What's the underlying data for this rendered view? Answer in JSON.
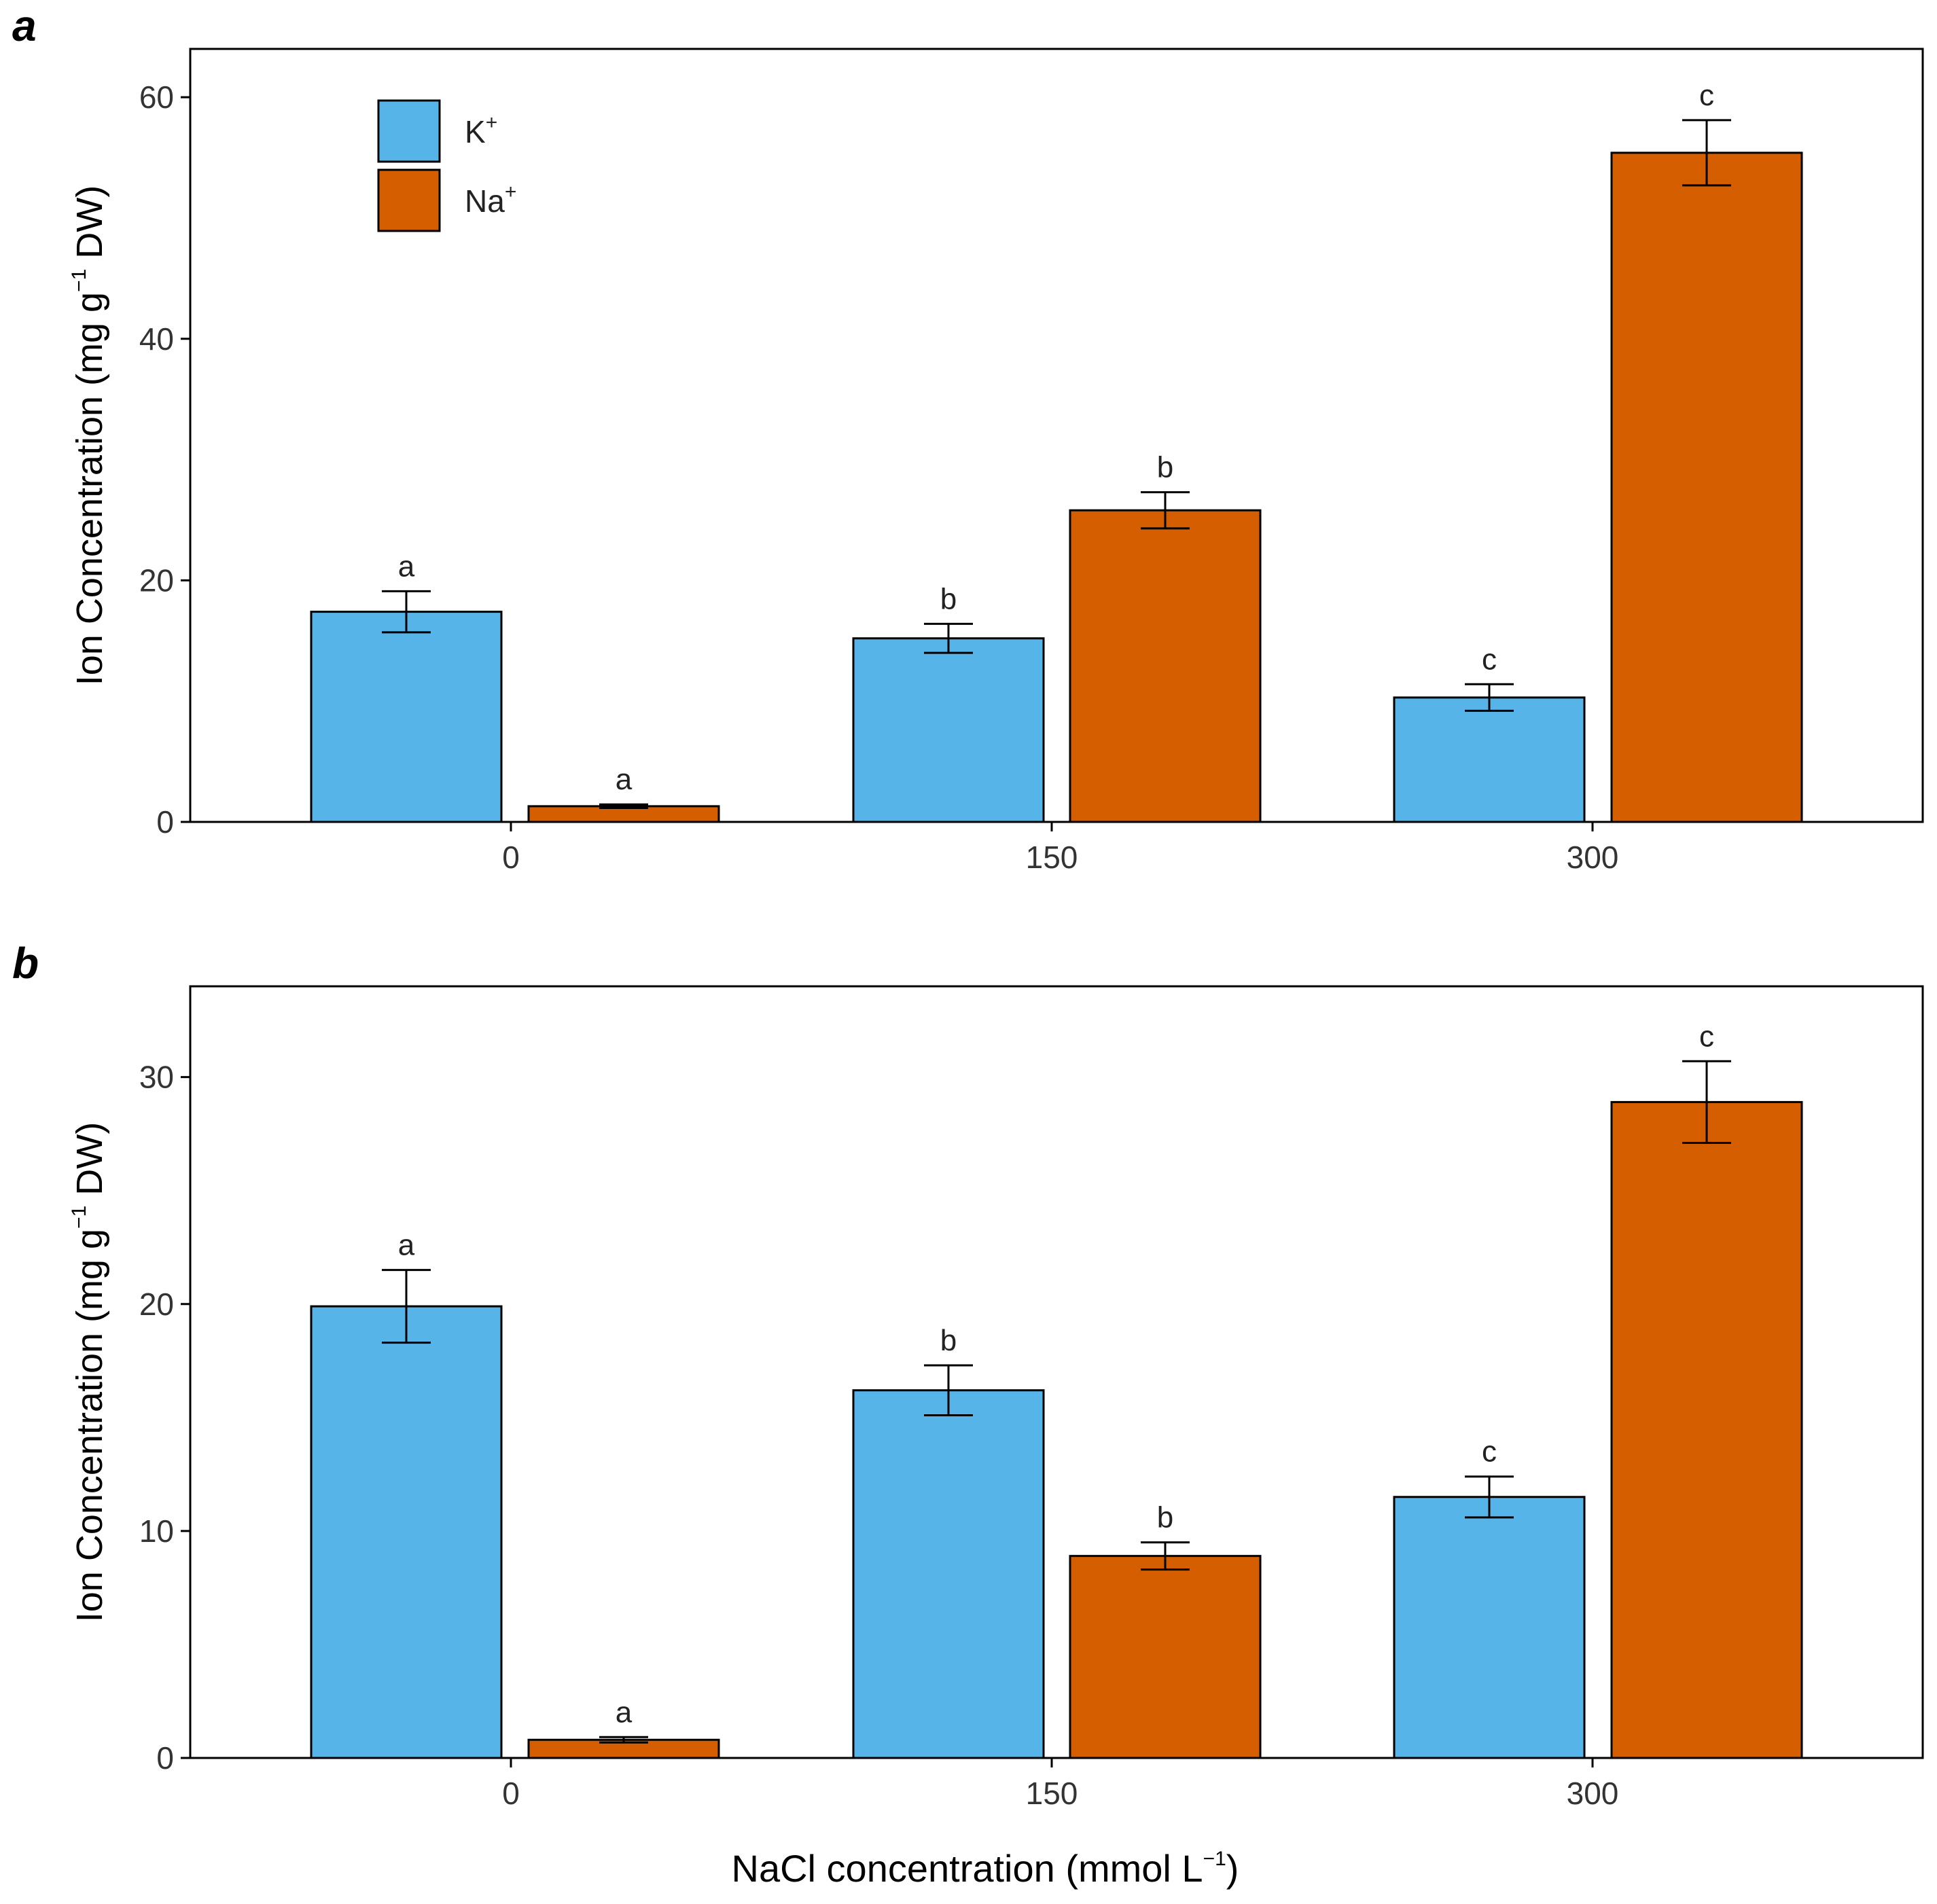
{
  "chart_data": [
    {
      "type": "bar",
      "panel_label": "a",
      "categories": [
        "0",
        "150",
        "300"
      ],
      "ylabel_main": "Ion Concentration (mg g",
      "ylabel_sup": "−1",
      "ylabel_end": " DW)",
      "ylim": [
        0,
        64
      ],
      "yticks": [
        0,
        20,
        40,
        60
      ],
      "series": [
        {
          "name": "K",
          "sup": "+",
          "color": "#56B4E9",
          "values": [
            17.4,
            15.2,
            10.3
          ],
          "errors": [
            1.7,
            1.2,
            1.1
          ],
          "letters": [
            "a",
            "b",
            "c"
          ]
        },
        {
          "name": "Na",
          "sup": "+",
          "color": "#D55E00",
          "values": [
            1.3,
            25.8,
            55.4
          ],
          "errors": [
            0.15,
            1.5,
            2.7
          ],
          "letters": [
            "a",
            "b",
            "c"
          ]
        }
      ],
      "legend": "top-left"
    },
    {
      "type": "bar",
      "panel_label": "b",
      "categories": [
        "0",
        "150",
        "300"
      ],
      "ylabel_main": "Ion Concentration (mg g",
      "ylabel_sup": "−1",
      "ylabel_end": " DW)",
      "ylim": [
        0,
        34
      ],
      "yticks": [
        0,
        10,
        20,
        30
      ],
      "series": [
        {
          "name": "K",
          "sup": "+",
          "color": "#56B4E9",
          "values": [
            19.9,
            16.2,
            11.5
          ],
          "errors": [
            1.6,
            1.1,
            0.9
          ],
          "letters": [
            "",
            "b",
            "c"
          ]
        },
        {
          "name": "Na",
          "sup": "+",
          "color": "#D55E00",
          "values": [
            0.8,
            8.9,
            28.9
          ],
          "errors": [
            0.12,
            0.6,
            1.8
          ],
          "letters": [
            "a",
            "b",
            "c"
          ]
        }
      ],
      "extra_letters": [
        {
          "text": "a",
          "category": 0,
          "series": 0
        }
      ]
    }
  ],
  "xlabel_main": "NaCl concentration (mmol L",
  "xlabel_sup": "−1",
  "xlabel_end": ")"
}
